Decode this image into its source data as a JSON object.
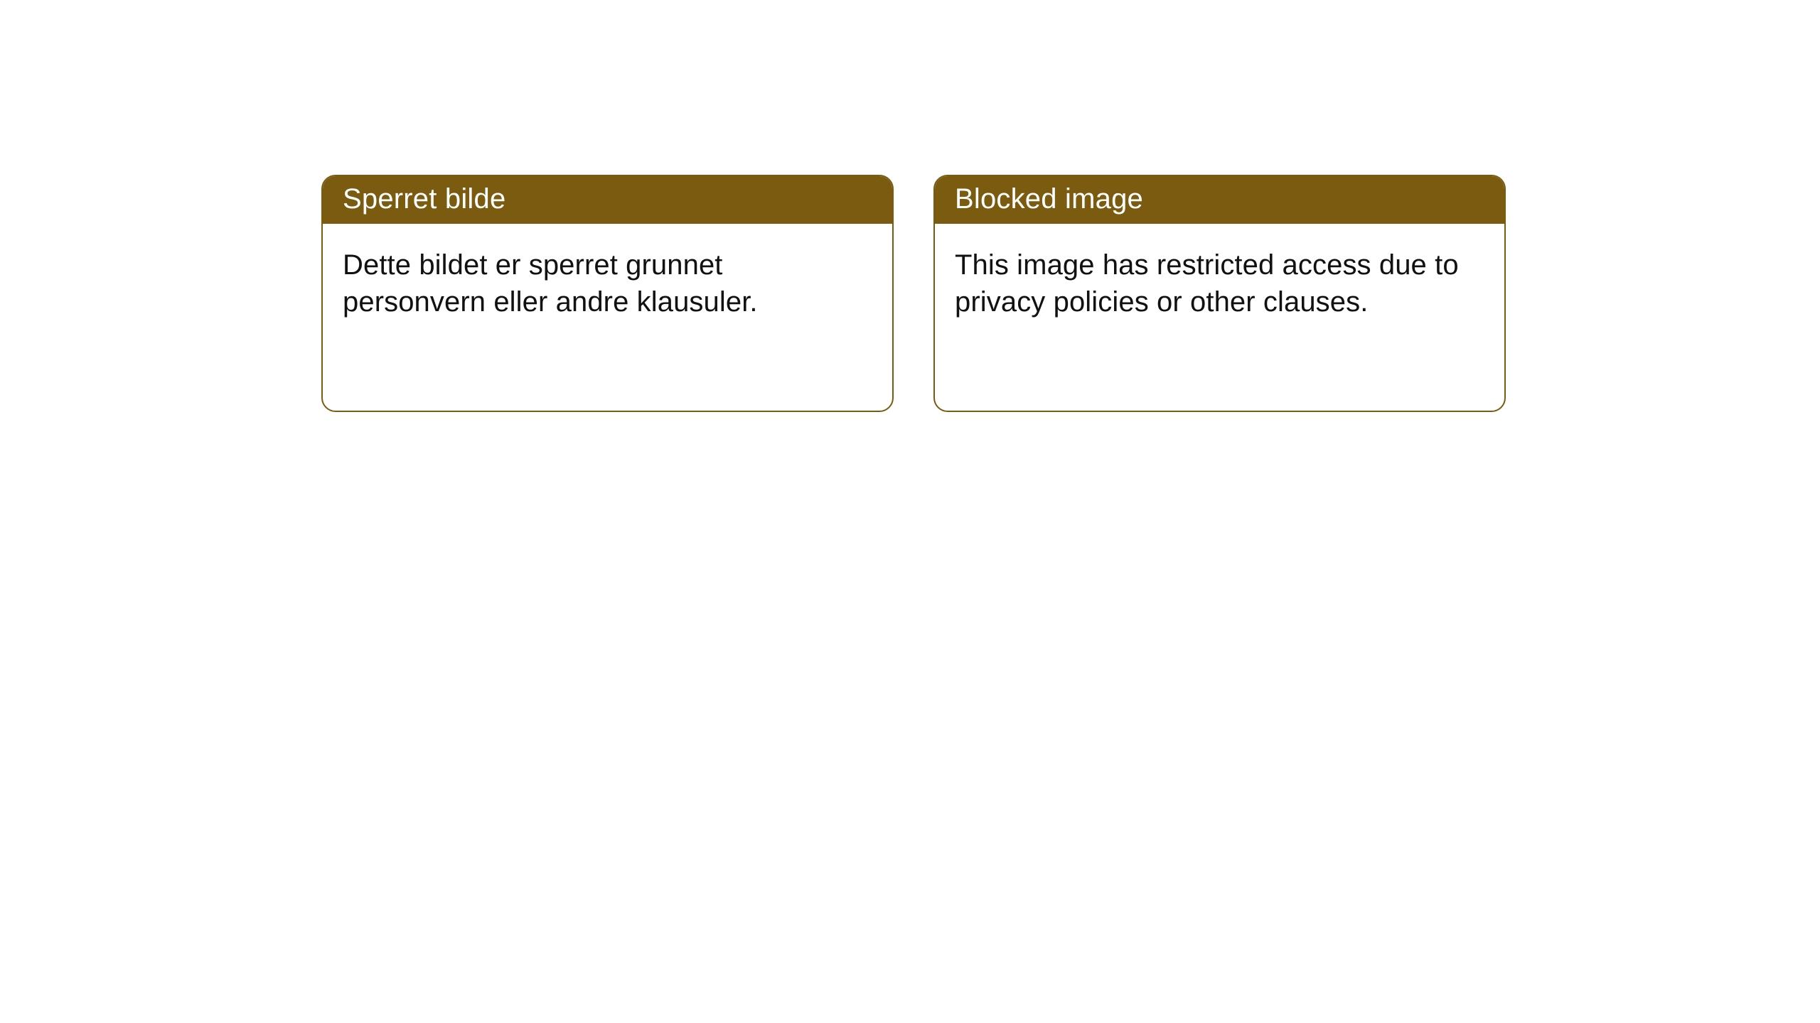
{
  "background_color": "#ffffff",
  "card_border_color": "#7a5b10",
  "header_background_color": "#7a5b10",
  "header_text_color": "#ffffff",
  "body_text_color": "#111111",
  "border_radius": 20,
  "title_fontsize": 40,
  "body_fontsize": 40,
  "font_family": "Arial, Helvetica, sans-serif",
  "cards": [
    {
      "title": "Sperret bilde",
      "body": "Dette bildet er sperret grunnet personvern eller andre klausuler."
    },
    {
      "title": "Blocked image",
      "body": "This image has restricted access due to privacy policies or other clauses."
    }
  ]
}
